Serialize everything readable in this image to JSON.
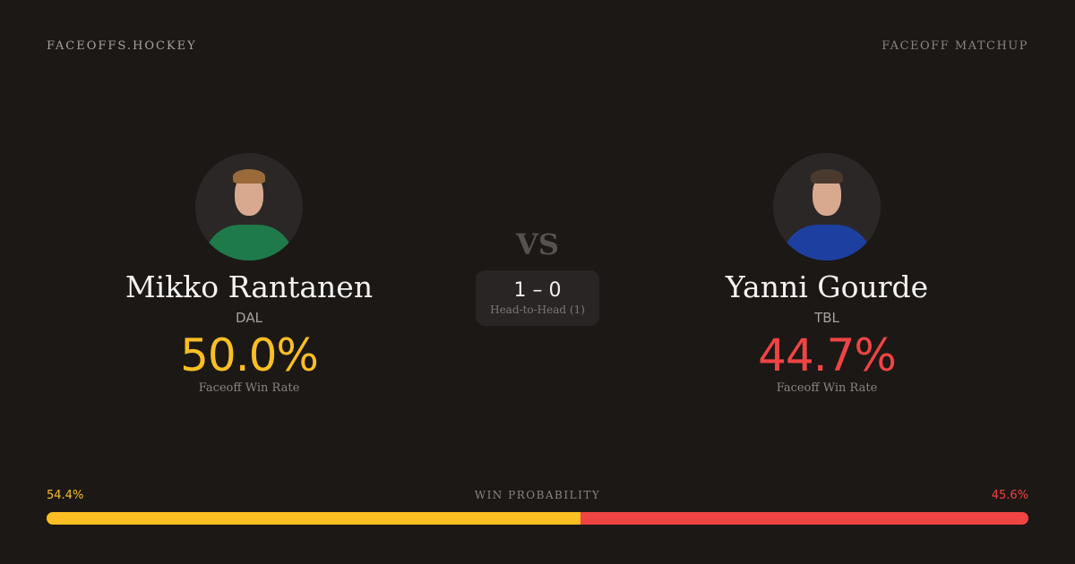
{
  "brand": "FACEOFFS.HOCKEY",
  "header_tag": "FACEOFF MATCHUP",
  "vs": "VS",
  "head_to_head": {
    "score": "1 – 0",
    "label": "Head-to-Head (1)"
  },
  "players": [
    {
      "name": "Mikko Rantanen",
      "team": "DAL",
      "win_rate": "50.0%",
      "win_rate_label": "Faceoff Win Rate",
      "color": "#fbbf24",
      "jersey_color": "#1e7a4a",
      "hair_color": "#9a6a3a"
    },
    {
      "name": "Yanni Gourde",
      "team": "TBL",
      "win_rate": "44.7%",
      "win_rate_label": "Faceoff Win Rate",
      "color": "#ef4444",
      "jersey_color": "#1d3fa0",
      "hair_color": "#4a3a2e"
    }
  ],
  "win_probability": {
    "label": "WIN PROBABILITY",
    "left": "54.4%",
    "right": "45.6%",
    "left_value": 54.4,
    "right_value": 45.6,
    "left_color": "#fbbf24",
    "right_color": "#ef4444"
  }
}
